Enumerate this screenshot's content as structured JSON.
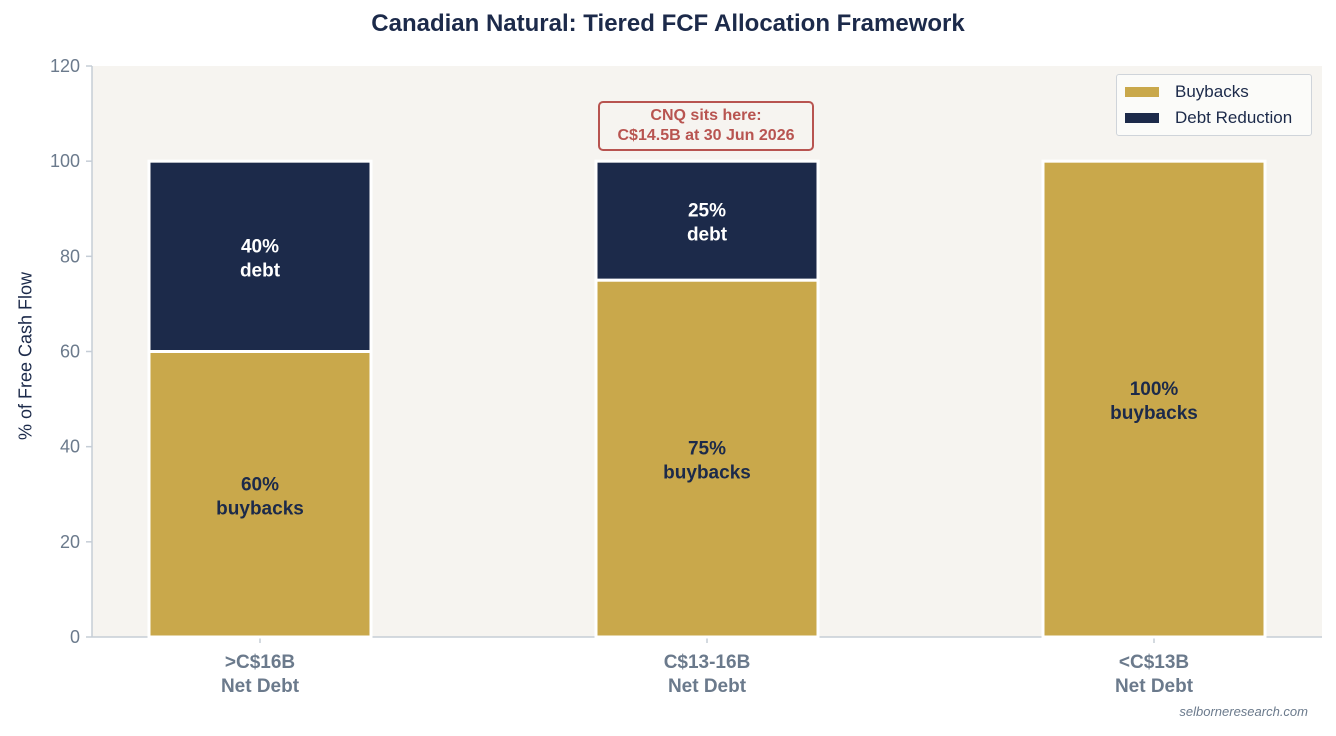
{
  "colors": {
    "buybacks": "#c9a84b",
    "debt": "#1c2a4a",
    "plot_bg": "#f6f4f0",
    "axis": "#c5cdd6",
    "tick_text": "#6b7a8c",
    "annotation": "#b85450"
  },
  "title": "Canadian Natural: Tiered FCF Allocation Framework",
  "source": "selborneresearch.com",
  "annotation": {
    "line1": "CNQ sits here:",
    "line2": "C$14.5B at 30 Jun 2026"
  },
  "legend": {
    "buybacks": "Buybacks",
    "debt": "Debt Reduction"
  },
  "chart_data": {
    "type": "bar",
    "stacked": true,
    "title": "Canadian Natural: Tiered FCF Allocation Framework",
    "ylabel": "% of Free Cash Flow",
    "ylim": [
      0,
      120
    ],
    "yticks": [
      0,
      20,
      40,
      60,
      80,
      100,
      120
    ],
    "legend_position": "top-right",
    "categories": [
      {
        "line1": ">C$16B",
        "line2": "Net Debt"
      },
      {
        "line1": "C$13-16B",
        "line2": "Net Debt"
      },
      {
        "line1": "<C$13B",
        "line2": "Net Debt"
      }
    ],
    "series": [
      {
        "name": "Buybacks",
        "key": "buybacks",
        "values": [
          60,
          75,
          100
        ],
        "labels": [
          [
            "60%",
            "buybacks"
          ],
          [
            "75%",
            "buybacks"
          ],
          [
            "100%",
            "buybacks"
          ]
        ]
      },
      {
        "name": "Debt Reduction",
        "key": "debt",
        "values": [
          40,
          25,
          0
        ],
        "labels": [
          [
            "40%",
            "debt"
          ],
          [
            "25%",
            "debt"
          ],
          null
        ]
      }
    ]
  }
}
